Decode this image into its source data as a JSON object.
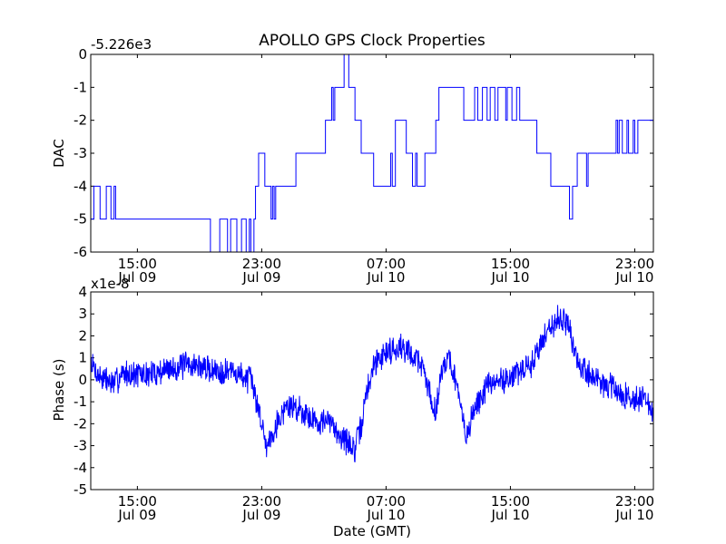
{
  "chart_data": [
    {
      "type": "line",
      "title": "APOLLO GPS Clock Properties",
      "offset_label": "-5.226e3",
      "xlabel": "",
      "ylabel": "DAC",
      "ylim": [
        -6,
        0
      ],
      "ytick_labels": [
        "0",
        "-1",
        "-2",
        "-3",
        "-4",
        "-5",
        "-6"
      ],
      "xlim_hours": [
        12,
        48.2
      ],
      "xticks": [
        {
          "hour": 15,
          "time": "15:00",
          "date": "Jul 09"
        },
        {
          "hour": 23,
          "time": "23:00",
          "date": "Jul 09"
        },
        {
          "hour": 31,
          "time": "07:00",
          "date": "Jul 10"
        },
        {
          "hour": 39,
          "time": "15:00",
          "date": "Jul 10"
        },
        {
          "hour": 47,
          "time": "23:00",
          "date": "Jul 10"
        }
      ],
      "series": [
        {
          "name": "DAC",
          "color": "#0000ff",
          "step": true,
          "points": [
            [
              12.0,
              -5
            ],
            [
              12.2,
              -5
            ],
            [
              12.2,
              -4
            ],
            [
              12.6,
              -4
            ],
            [
              12.6,
              -5
            ],
            [
              13.0,
              -5
            ],
            [
              13.0,
              -4
            ],
            [
              13.3,
              -4
            ],
            [
              13.3,
              -5
            ],
            [
              13.5,
              -5
            ],
            [
              13.5,
              -4
            ],
            [
              13.6,
              -4
            ],
            [
              13.6,
              -5
            ],
            [
              13.9,
              -5
            ],
            [
              19.7,
              -5
            ],
            [
              19.7,
              -6
            ],
            [
              20.3,
              -6
            ],
            [
              20.3,
              -5
            ],
            [
              20.8,
              -5
            ],
            [
              20.8,
              -6
            ],
            [
              21.0,
              -6
            ],
            [
              21.0,
              -5
            ],
            [
              21.4,
              -5
            ],
            [
              21.4,
              -6
            ],
            [
              21.7,
              -6
            ],
            [
              21.7,
              -5
            ],
            [
              22.0,
              -5
            ],
            [
              22.0,
              -6
            ],
            [
              22.2,
              -6
            ],
            [
              22.2,
              -5
            ],
            [
              22.3,
              -5
            ],
            [
              22.3,
              -6
            ],
            [
              22.5,
              -6
            ],
            [
              22.5,
              -5
            ],
            [
              22.6,
              -5
            ],
            [
              22.6,
              -4
            ],
            [
              22.8,
              -4
            ],
            [
              22.8,
              -3
            ],
            [
              23.2,
              -3
            ],
            [
              23.2,
              -4
            ],
            [
              23.6,
              -4
            ],
            [
              23.6,
              -5
            ],
            [
              23.7,
              -5
            ],
            [
              23.7,
              -4
            ],
            [
              23.8,
              -4
            ],
            [
              23.8,
              -5
            ],
            [
              23.9,
              -5
            ],
            [
              23.9,
              -4
            ],
            [
              25.2,
              -4
            ],
            [
              25.2,
              -3
            ],
            [
              27.1,
              -3
            ],
            [
              27.1,
              -2
            ],
            [
              27.5,
              -2
            ],
            [
              27.5,
              -1
            ],
            [
              27.6,
              -1
            ],
            [
              27.6,
              -2
            ],
            [
              27.7,
              -2
            ],
            [
              27.7,
              -1
            ],
            [
              28.3,
              -1
            ],
            [
              28.3,
              0
            ],
            [
              28.6,
              0
            ],
            [
              28.6,
              -1
            ],
            [
              29.0,
              -1
            ],
            [
              29.0,
              -2
            ],
            [
              29.4,
              -2
            ],
            [
              29.4,
              -3
            ],
            [
              30.2,
              -3
            ],
            [
              30.2,
              -4
            ],
            [
              31.3,
              -4
            ],
            [
              31.3,
              -3
            ],
            [
              31.4,
              -3
            ],
            [
              31.4,
              -4
            ],
            [
              31.6,
              -4
            ],
            [
              31.6,
              -2
            ],
            [
              32.3,
              -2
            ],
            [
              32.3,
              -3
            ],
            [
              32.7,
              -3
            ],
            [
              32.7,
              -4
            ],
            [
              32.9,
              -4
            ],
            [
              32.9,
              -3
            ],
            [
              33.0,
              -3
            ],
            [
              33.0,
              -4
            ],
            [
              33.5,
              -4
            ],
            [
              33.5,
              -3
            ],
            [
              34.2,
              -3
            ],
            [
              34.2,
              -2
            ],
            [
              34.4,
              -2
            ],
            [
              34.4,
              -1
            ],
            [
              36.0,
              -1
            ],
            [
              36.0,
              -2
            ],
            [
              36.7,
              -2
            ],
            [
              36.7,
              -1
            ],
            [
              36.9,
              -1
            ],
            [
              36.9,
              -2
            ],
            [
              37.2,
              -2
            ],
            [
              37.2,
              -1
            ],
            [
              37.5,
              -1
            ],
            [
              37.5,
              -2
            ],
            [
              37.7,
              -2
            ],
            [
              37.7,
              -1
            ],
            [
              38.0,
              -1
            ],
            [
              38.0,
              -2
            ],
            [
              38.2,
              -2
            ],
            [
              38.2,
              -1
            ],
            [
              38.7,
              -1
            ],
            [
              38.7,
              -2
            ],
            [
              38.8,
              -2
            ],
            [
              38.8,
              -1
            ],
            [
              39.1,
              -1
            ],
            [
              39.1,
              -2
            ],
            [
              39.4,
              -2
            ],
            [
              39.4,
              -1
            ],
            [
              39.6,
              -1
            ],
            [
              39.6,
              -2
            ],
            [
              40.7,
              -2
            ],
            [
              40.7,
              -3
            ],
            [
              41.6,
              -3
            ],
            [
              41.6,
              -4
            ],
            [
              42.8,
              -4
            ],
            [
              42.8,
              -5
            ],
            [
              43.0,
              -5
            ],
            [
              43.0,
              -4
            ],
            [
              43.3,
              -4
            ],
            [
              43.3,
              -3
            ],
            [
              43.9,
              -3
            ],
            [
              43.9,
              -4
            ],
            [
              44.0,
              -4
            ],
            [
              44.0,
              -3
            ],
            [
              45.8,
              -3
            ],
            [
              45.8,
              -2
            ],
            [
              45.9,
              -2
            ],
            [
              45.9,
              -3
            ],
            [
              46.0,
              -3
            ],
            [
              46.0,
              -2
            ],
            [
              46.2,
              -2
            ],
            [
              46.2,
              -3
            ],
            [
              46.5,
              -3
            ],
            [
              46.5,
              -2
            ],
            [
              46.6,
              -2
            ],
            [
              46.6,
              -3
            ],
            [
              46.9,
              -3
            ],
            [
              46.9,
              -2
            ],
            [
              47.0,
              -2
            ],
            [
              47.0,
              -3
            ],
            [
              47.2,
              -3
            ],
            [
              47.2,
              -2
            ],
            [
              48.2,
              -2
            ]
          ]
        }
      ]
    },
    {
      "type": "line",
      "title": "",
      "offset_label": "x1e-8",
      "xlabel": "Date (GMT)",
      "ylabel": "Phase (s)",
      "ylim": [
        -5,
        4
      ],
      "ytick_labels": [
        "4",
        "3",
        "2",
        "1",
        "0",
        "-1",
        "-2",
        "-3",
        "-4",
        "-5"
      ],
      "xlim_hours": [
        12,
        48.2
      ],
      "xticks": [
        {
          "hour": 15,
          "time": "15:00",
          "date": "Jul 09"
        },
        {
          "hour": 23,
          "time": "23:00",
          "date": "Jul 09"
        },
        {
          "hour": 31,
          "time": "07:00",
          "date": "Jul 10"
        },
        {
          "hour": 39,
          "time": "15:00",
          "date": "Jul 10"
        },
        {
          "hour": 47,
          "time": "23:00",
          "date": "Jul 10"
        }
      ],
      "series": [
        {
          "name": "Phase",
          "color": "#0000ff",
          "step": false,
          "noise": 0.55,
          "seed": 7,
          "samples": 1400,
          "trend": [
            [
              12.0,
              0.8
            ],
            [
              12.5,
              0.2
            ],
            [
              13.5,
              -0.2
            ],
            [
              14.0,
              0.3
            ],
            [
              15.5,
              0.2
            ],
            [
              17.0,
              0.5
            ],
            [
              18.5,
              0.7
            ],
            [
              20.0,
              0.4
            ],
            [
              21.0,
              0.4
            ],
            [
              22.3,
              0.0
            ],
            [
              22.8,
              -1.3
            ],
            [
              23.3,
              -3.0
            ],
            [
              23.8,
              -2.2
            ],
            [
              24.6,
              -1.2
            ],
            [
              25.4,
              -1.3
            ],
            [
              26.5,
              -1.9
            ],
            [
              27.3,
              -1.9
            ],
            [
              28.2,
              -2.6
            ],
            [
              29.0,
              -3.2
            ],
            [
              29.4,
              -2.1
            ],
            [
              29.8,
              -0.4
            ],
            [
              30.3,
              0.8
            ],
            [
              31.0,
              1.3
            ],
            [
              32.0,
              1.5
            ],
            [
              32.8,
              1.1
            ],
            [
              33.3,
              0.7
            ],
            [
              33.8,
              -0.6
            ],
            [
              34.2,
              -1.5
            ],
            [
              34.6,
              0.6
            ],
            [
              35.0,
              1.0
            ],
            [
              35.4,
              0.3
            ],
            [
              35.8,
              -1.4
            ],
            [
              36.2,
              -2.6
            ],
            [
              36.7,
              -1.3
            ],
            [
              37.5,
              -0.3
            ],
            [
              38.5,
              0.0
            ],
            [
              39.5,
              0.3
            ],
            [
              40.3,
              0.6
            ],
            [
              40.8,
              1.4
            ],
            [
              41.4,
              2.3
            ],
            [
              42.2,
              2.9
            ],
            [
              42.8,
              2.4
            ],
            [
              43.3,
              0.7
            ],
            [
              44.0,
              0.3
            ],
            [
              44.8,
              -0.1
            ],
            [
              45.6,
              -0.4
            ],
            [
              46.5,
              -0.8
            ],
            [
              47.4,
              -0.8
            ],
            [
              48.2,
              -1.4
            ]
          ]
        }
      ]
    }
  ]
}
